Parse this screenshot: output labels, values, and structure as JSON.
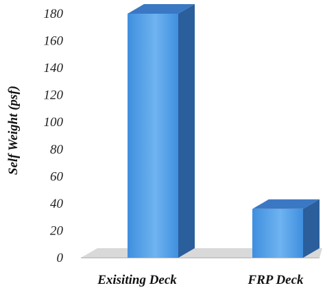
{
  "chart_data": {
    "type": "bar",
    "style": "3d-column",
    "categories": [
      "Exisiting Deck",
      "FRP Deck"
    ],
    "series": [
      {
        "values": [
          180,
          36
        ]
      }
    ],
    "title": "",
    "xlabel": "",
    "ylabel": "Self Weight (psf)",
    "ylim": [
      0,
      180
    ],
    "yticks": [
      0,
      20,
      40,
      60,
      80,
      100,
      120,
      140,
      160,
      180
    ],
    "grid": false,
    "legend": "none",
    "colors": {
      "bar_front": "#3f8fdf",
      "bar_front_light": "#6fb3f0",
      "bar_side": "#2a5f9c",
      "bar_top": "#3a78c4",
      "floor": "#d9d9d9",
      "floor_shadow": "#bdbdbd"
    }
  }
}
